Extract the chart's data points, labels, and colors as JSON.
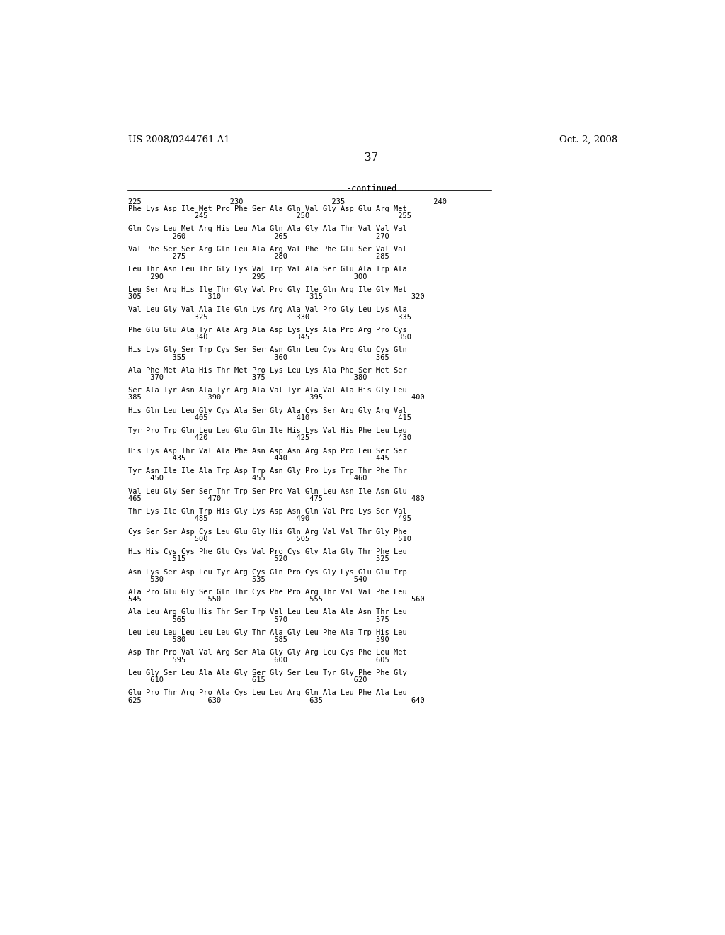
{
  "header_left": "US 2008/0244761 A1",
  "header_right": "Oct. 2, 2008",
  "page_number": "37",
  "continued_label": "-continued",
  "background_color": "#ffffff",
  "text_color": "#000000",
  "blocks": [
    {
      "seq": "Phe Lys Asp Ile Met Pro Phe Ser Ala Gln Val Gly Asp Glu Arg Met",
      "num": "225                    230                    235                    240",
      "num_indent": 0,
      "sub_num": "               245                    250                    255"
    },
    {
      "seq": "Gln Cys Leu Met Arg His Leu Ala Gln Ala Gly Ala Thr Val Val Val",
      "num": "          260                    265                    270",
      "num_indent": 0,
      "sub_num": null
    },
    {
      "seq": "Val Phe Ser Ser Arg Gln Leu Ala Arg Val Phe Phe Glu Ser Val Val",
      "num": "          275                    280                    285",
      "num_indent": 0,
      "sub_num": null
    },
    {
      "seq": "Leu Thr Asn Leu Thr Gly Lys Val Trp Val Ala Ser Glu Ala Trp Ala",
      "num": "     290                    295                    300",
      "num_indent": 0,
      "sub_num": null
    },
    {
      "seq": "Leu Ser Arg His Ile Thr Gly Val Pro Gly Ile Gln Arg Ile Gly Met",
      "num": "305               310                    315                    320",
      "num_indent": 0,
      "sub_num": null
    },
    {
      "seq": "Val Leu Gly Val Ala Ile Gln Lys Arg Ala Val Pro Gly Leu Lys Ala",
      "num": "               325                    330                    335",
      "num_indent": 0,
      "sub_num": null
    },
    {
      "seq": "Phe Glu Glu Ala Tyr Ala Arg Ala Asp Lys Lys Ala Pro Arg Pro Cys",
      "num": "               340                    345                    350",
      "num_indent": 0,
      "sub_num": null
    },
    {
      "seq": "His Lys Gly Ser Trp Cys Ser Ser Asn Gln Leu Cys Arg Glu Cys Gln",
      "num": "          355                    360                    365",
      "num_indent": 0,
      "sub_num": null
    },
    {
      "seq": "Ala Phe Met Ala His Thr Met Pro Lys Leu Lys Ala Phe Ser Met Ser",
      "num": "     370                    375                    380",
      "num_indent": 0,
      "sub_num": null
    },
    {
      "seq": "Ser Ala Tyr Asn Ala Tyr Arg Ala Val Tyr Ala Val Ala His Gly Leu",
      "num": "385               390                    395                    400",
      "num_indent": 0,
      "sub_num": null
    },
    {
      "seq": "His Gln Leu Leu Gly Cys Ala Ser Gly Ala Cys Ser Arg Gly Arg Val",
      "num": "               405                    410                    415",
      "num_indent": 0,
      "sub_num": null
    },
    {
      "seq": "Tyr Pro Trp Gln Leu Leu Glu Gln Ile His Lys Val His Phe Leu Leu",
      "num": "               420                    425                    430",
      "num_indent": 0,
      "sub_num": null
    },
    {
      "seq": "His Lys Asp Thr Val Ala Phe Asn Asp Asn Arg Asp Pro Leu Ser Ser",
      "num": "          435                    440                    445",
      "num_indent": 0,
      "sub_num": null
    },
    {
      "seq": "Tyr Asn Ile Ile Ala Trp Asp Trp Asn Gly Pro Lys Trp Thr Phe Thr",
      "num": "     450                    455                    460",
      "num_indent": 0,
      "sub_num": null
    },
    {
      "seq": "Val Leu Gly Ser Ser Thr Trp Ser Pro Val Gln Leu Asn Ile Asn Glu",
      "num": "465               470                    475                    480",
      "num_indent": 0,
      "sub_num": null
    },
    {
      "seq": "Thr Lys Ile Gln Trp His Gly Lys Asp Asn Gln Val Pro Lys Ser Val",
      "num": "               485                    490                    495",
      "num_indent": 0,
      "sub_num": null
    },
    {
      "seq": "Cys Ser Ser Asp Cys Leu Glu Gly His Gln Arg Val Val Thr Gly Phe",
      "num": "               500                    505                    510",
      "num_indent": 0,
      "sub_num": null
    },
    {
      "seq": "His His Cys Cys Phe Glu Cys Val Pro Cys Gly Ala Gly Thr Phe Leu",
      "num": "          515                    520                    525",
      "num_indent": 0,
      "sub_num": null
    },
    {
      "seq": "Asn Lys Ser Asp Leu Tyr Arg Cys Gln Pro Cys Gly Lys Glu Glu Trp",
      "num": "     530                    535                    540",
      "num_indent": 0,
      "sub_num": null
    },
    {
      "seq": "Ala Pro Glu Gly Ser Gln Thr Cys Phe Pro Arg Thr Val Val Phe Leu",
      "num": "545               550                    555                    560",
      "num_indent": 0,
      "sub_num": null
    },
    {
      "seq": "Ala Leu Arg Glu His Thr Ser Trp Val Leu Leu Ala Ala Asn Thr Leu",
      "num": "          565                    570                    575",
      "num_indent": 0,
      "sub_num": null
    },
    {
      "seq": "Leu Leu Leu Leu Leu Leu Gly Thr Ala Gly Leu Phe Ala Trp His Leu",
      "num": "          580                    585                    590",
      "num_indent": 0,
      "sub_num": null
    },
    {
      "seq": "Asp Thr Pro Val Val Arg Ser Ala Gly Gly Arg Leu Cys Phe Leu Met",
      "num": "          595                    600                    605",
      "num_indent": 0,
      "sub_num": null
    },
    {
      "seq": "Leu Gly Ser Leu Ala Ala Gly Ser Gly Ser Leu Tyr Gly Phe Phe Gly",
      "num": "     610                    615                    620",
      "num_indent": 0,
      "sub_num": null
    },
    {
      "seq": "Glu Pro Thr Arg Pro Ala Cys Leu Leu Arg Gln Ala Leu Phe Ala Leu",
      "num": "625               630                    635                    640",
      "num_indent": 0,
      "sub_num": null
    }
  ]
}
